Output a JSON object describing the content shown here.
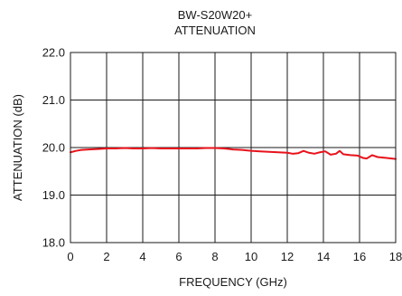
{
  "chart_data": {
    "type": "line",
    "title": "BW-S20W20+",
    "subtitle": "ATTENUATION",
    "xlabel": "FREQUENCY (GHz)",
    "ylabel": "ATTENUATION (dB)",
    "xlim": [
      0,
      18
    ],
    "ylim": [
      18.0,
      22.0
    ],
    "x_ticks": [
      0,
      2,
      4,
      6,
      8,
      10,
      12,
      14,
      16,
      18
    ],
    "x_tick_labels": [
      "0",
      "2",
      "4",
      "6",
      "8",
      "10",
      "12",
      "14",
      "16",
      "18"
    ],
    "y_ticks": [
      18.0,
      19.0,
      20.0,
      21.0,
      22.0
    ],
    "y_tick_labels": [
      "18.0",
      "19.0",
      "20.0",
      "21.0",
      "22.0"
    ],
    "grid": true,
    "colors": {
      "series": "#e8121b",
      "grid": "#1a1a1a",
      "frame": "#1a1a1a"
    },
    "series": [
      {
        "x": [
          0.0,
          0.3,
          0.6,
          1.0,
          1.5,
          2.0,
          2.5,
          3.0,
          3.5,
          4.0,
          4.5,
          5.0,
          5.5,
          6.0,
          6.5,
          7.0,
          7.5,
          8.0,
          8.5,
          9.0,
          9.5,
          10.0,
          10.5,
          11.0,
          11.5,
          12.0,
          12.3,
          12.6,
          12.9,
          13.2,
          13.5,
          13.8,
          14.1,
          14.4,
          14.7,
          14.9,
          15.1,
          15.5,
          15.9,
          16.2,
          16.4,
          16.7,
          17.0,
          17.5,
          18.0
        ],
        "y": [
          19.9,
          19.93,
          19.95,
          19.96,
          19.97,
          19.98,
          19.98,
          19.99,
          19.98,
          19.98,
          19.99,
          19.98,
          19.98,
          19.98,
          19.98,
          19.98,
          19.99,
          19.99,
          19.98,
          19.96,
          19.95,
          19.93,
          19.92,
          19.91,
          19.9,
          19.89,
          19.87,
          19.88,
          19.93,
          19.89,
          19.87,
          19.9,
          19.92,
          19.85,
          19.87,
          19.93,
          19.86,
          19.84,
          19.83,
          19.78,
          19.77,
          19.84,
          19.8,
          19.78,
          19.76
        ]
      }
    ]
  }
}
